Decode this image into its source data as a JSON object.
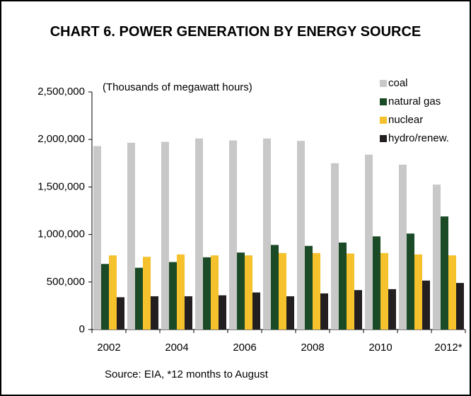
{
  "chart_data": {
    "type": "bar",
    "title": "CHART 6. POWER GENERATION BY ENERGY SOURCE",
    "subtitle": "(Thousands of megawatt hours)",
    "source": "Source: EIA, *12 months to August",
    "categories": [
      "2002",
      null,
      "2004",
      null,
      "2006",
      null,
      "2008",
      null,
      "2010",
      null,
      "2012*"
    ],
    "series": [
      {
        "name": "coal",
        "color": "#c8c8c8",
        "values": [
          1930000,
          1965000,
          1975000,
          2010000,
          1990000,
          2010000,
          1985000,
          1750000,
          1840000,
          1735000,
          1525000
        ]
      },
      {
        "name": "natural gas",
        "color": "#1b4a26",
        "values": [
          690000,
          650000,
          710000,
          760000,
          810000,
          890000,
          880000,
          915000,
          980000,
          1010000,
          1190000
        ]
      },
      {
        "name": "nuclear",
        "color": "#f5c12c",
        "values": [
          780000,
          765000,
          790000,
          780000,
          780000,
          805000,
          805000,
          800000,
          805000,
          790000,
          780000
        ]
      },
      {
        "name": "hydro/renew.",
        "color": "#231f20",
        "values": [
          340000,
          350000,
          350000,
          360000,
          390000,
          350000,
          380000,
          415000,
          425000,
          515000,
          490000
        ]
      }
    ],
    "ylim": [
      0,
      2500000
    ],
    "yticks": [
      0,
      {
        "value": 500000,
        "label": "500,000"
      },
      {
        "value": 1000000,
        "label": "1,000,000"
      },
      {
        "value": 1500000,
        "label": "1,500,000"
      },
      {
        "value": 2000000,
        "label": "2,000,000"
      },
      {
        "value": 2500000,
        "label": "2,500,000"
      }
    ],
    "grid": false,
    "legend": "top-right"
  }
}
